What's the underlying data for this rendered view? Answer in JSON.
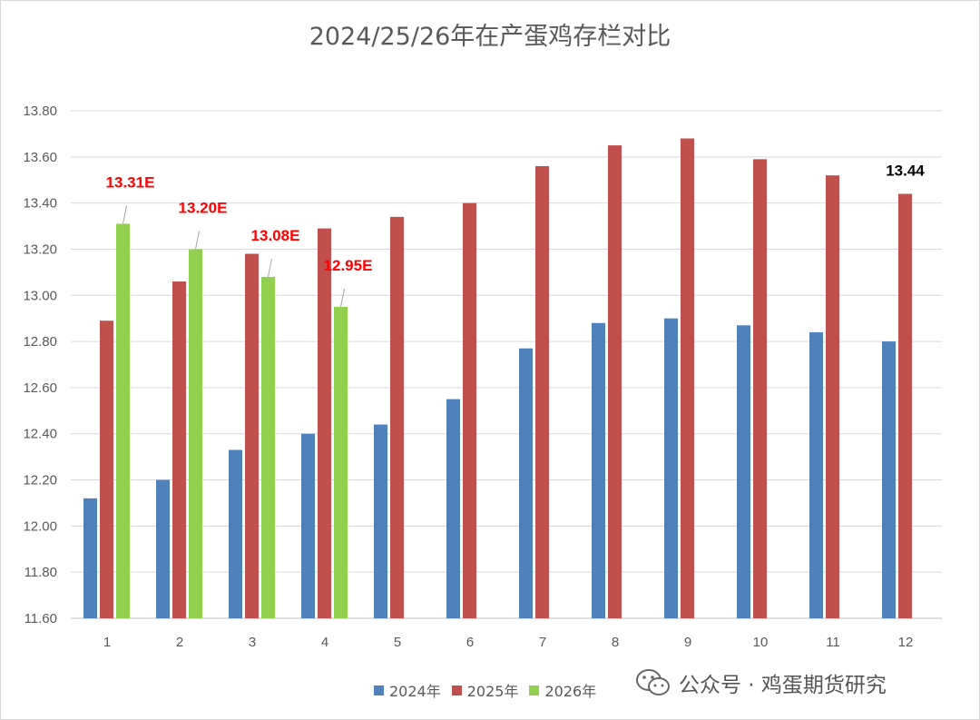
{
  "chart_data": {
    "type": "bar",
    "title": "2024/25/26年在产蛋鸡存栏对比",
    "categories": [
      "1",
      "2",
      "3",
      "4",
      "5",
      "6",
      "7",
      "8",
      "9",
      "10",
      "11",
      "12"
    ],
    "ylim": [
      11.6,
      13.8
    ],
    "yticks": [
      "11.60",
      "11.80",
      "12.00",
      "12.20",
      "12.40",
      "12.60",
      "12.80",
      "13.00",
      "13.20",
      "13.40",
      "13.60",
      "13.80"
    ],
    "grid": true,
    "legend_position": "bottom",
    "series": [
      {
        "name": "2024年",
        "color": "#4f81bd",
        "values": [
          12.12,
          12.2,
          12.33,
          12.4,
          12.44,
          12.55,
          12.77,
          12.88,
          12.9,
          12.87,
          12.84,
          12.8
        ]
      },
      {
        "name": "2025年",
        "color": "#c0504d",
        "values": [
          12.89,
          13.06,
          13.18,
          13.29,
          13.34,
          13.4,
          13.56,
          13.65,
          13.68,
          13.59,
          13.52,
          13.44
        ]
      },
      {
        "name": "2026年",
        "color": "#92d050",
        "values": [
          13.31,
          13.2,
          13.08,
          12.95,
          null,
          null,
          null,
          null,
          null,
          null,
          null,
          null
        ]
      }
    ],
    "annotations": [
      {
        "text": "13.31E",
        "series": "2026年",
        "category": "1",
        "color": "#ff0000"
      },
      {
        "text": "13.20E",
        "series": "2026年",
        "category": "2",
        "color": "#ff0000"
      },
      {
        "text": "13.08E",
        "series": "2026年",
        "category": "3",
        "color": "#ff0000"
      },
      {
        "text": "12.95E",
        "series": "2026年",
        "category": "4",
        "color": "#ff0000"
      },
      {
        "text": "13.44",
        "series": "2025年",
        "category": "12",
        "color": "#000000"
      }
    ]
  },
  "watermark": "公众号 · 鸡蛋期货研究"
}
